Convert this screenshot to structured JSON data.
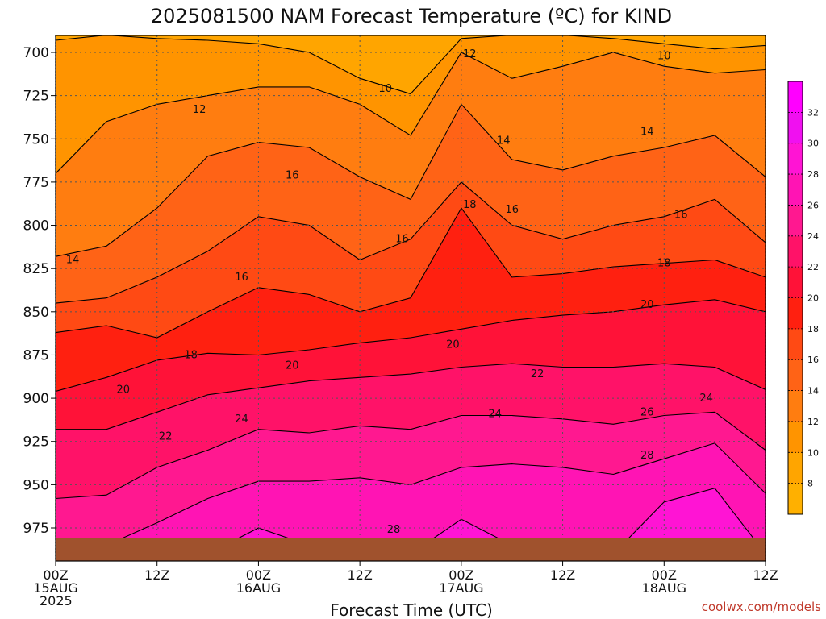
{
  "chart_data": {
    "type": "heatmap",
    "title": "2025081500 NAM Forecast Temperature (ºC) for KIND",
    "xlabel": "Forecast Time (UTC)",
    "ylabel": "",
    "y_ticks": [
      700,
      725,
      750,
      775,
      800,
      825,
      850,
      875,
      900,
      925,
      950,
      975
    ],
    "y_range_hpa": [
      690,
      990
    ],
    "x_range_hours": [
      0,
      84
    ],
    "x_ticks": [
      {
        "hour": 0,
        "line1": "00Z",
        "line2": "15AUG",
        "line3": "2025"
      },
      {
        "hour": 12,
        "line1": "12Z",
        "line2": "",
        "line3": ""
      },
      {
        "hour": 24,
        "line1": "00Z",
        "line2": "16AUG",
        "line3": ""
      },
      {
        "hour": 36,
        "line1": "12Z",
        "line2": "",
        "line3": ""
      },
      {
        "hour": 48,
        "line1": "00Z",
        "line2": "17AUG",
        "line3": ""
      },
      {
        "hour": 60,
        "line1": "12Z",
        "line2": "",
        "line3": ""
      },
      {
        "hour": 72,
        "line1": "00Z",
        "line2": "18AUG",
        "line3": ""
      },
      {
        "hour": 84,
        "line1": "12Z",
        "line2": "",
        "line3": ""
      }
    ],
    "grid": true,
    "colorbar": {
      "position": "right",
      "levels": [
        8,
        10,
        12,
        14,
        16,
        18,
        20,
        22,
        24,
        26,
        28,
        30,
        32
      ],
      "colors": [
        "#ffb000",
        "#ffa500",
        "#ff9400",
        "#ff7d10",
        "#ff6316",
        "#ff4a14",
        "#ff2010",
        "#ff1238",
        "#ff1268",
        "#ff1890",
        "#ff14b4",
        "#ff14d4",
        "#f010f0",
        "#ff00ff"
      ],
      "labels": [
        "8",
        "10",
        "12",
        "14",
        "16",
        "18",
        "20",
        "22",
        "24",
        "26",
        "28",
        "30",
        "32"
      ]
    },
    "contour_levels": [
      10,
      12,
      14,
      16,
      18,
      20,
      22,
      24,
      26,
      28
    ],
    "isotherm_pressure_hpa": {
      "hours": [
        0,
        6,
        12,
        18,
        24,
        30,
        36,
        42,
        48,
        54,
        60,
        66,
        72,
        78,
        84
      ],
      "t10": [
        693,
        690,
        692,
        693,
        695,
        700,
        715,
        724,
        692,
        690,
        690,
        692,
        695,
        698,
        696
      ],
      "t12": [
        770,
        740,
        730,
        725,
        720,
        720,
        730,
        748,
        700,
        715,
        708,
        700,
        708,
        712,
        710
      ],
      "t14": [
        818,
        812,
        790,
        760,
        752,
        755,
        772,
        785,
        730,
        762,
        768,
        760,
        755,
        748,
        772
      ],
      "t16": [
        845,
        842,
        830,
        815,
        795,
        800,
        820,
        808,
        775,
        800,
        808,
        800,
        795,
        785,
        810
      ],
      "t18": [
        862,
        858,
        865,
        850,
        836,
        840,
        850,
        842,
        790,
        830,
        828,
        824,
        822,
        820,
        830
      ],
      "t20": [
        896,
        888,
        878,
        874,
        875,
        872,
        868,
        865,
        860,
        855,
        852,
        850,
        846,
        843,
        850
      ],
      "t22": [
        918,
        918,
        908,
        898,
        894,
        890,
        888,
        886,
        882,
        880,
        882,
        882,
        880,
        882,
        895
      ],
      "t24": [
        958,
        956,
        940,
        930,
        918,
        920,
        916,
        918,
        910,
        910,
        912,
        915,
        910,
        908,
        930
      ],
      "t26": [
        990,
        985,
        972,
        958,
        948,
        948,
        946,
        950,
        940,
        938,
        940,
        944,
        935,
        926,
        955
      ],
      "t28": [
        990,
        990,
        990,
        990,
        975,
        985,
        990,
        990,
        970,
        985,
        990,
        990,
        960,
        952,
        990
      ]
    },
    "contour_labels": [
      {
        "text": "10",
        "hour": 72,
        "hpa": 702
      },
      {
        "text": "12",
        "hour": 49,
        "hpa": 701
      },
      {
        "text": "10",
        "hour": 39,
        "hpa": 721
      },
      {
        "text": "12",
        "hour": 17,
        "hpa": 733
      },
      {
        "text": "14",
        "hour": 53,
        "hpa": 751
      },
      {
        "text": "14",
        "hour": 70,
        "hpa": 746
      },
      {
        "text": "16",
        "hour": 28,
        "hpa": 771
      },
      {
        "text": "18",
        "hour": 49,
        "hpa": 788
      },
      {
        "text": "16",
        "hour": 54,
        "hpa": 791
      },
      {
        "text": "16",
        "hour": 74,
        "hpa": 794
      },
      {
        "text": "16",
        "hour": 41,
        "hpa": 808
      },
      {
        "text": "14",
        "hour": 2,
        "hpa": 820
      },
      {
        "text": "16",
        "hour": 22,
        "hpa": 830
      },
      {
        "text": "18",
        "hour": 72,
        "hpa": 822
      },
      {
        "text": "20",
        "hour": 70,
        "hpa": 846
      },
      {
        "text": "18",
        "hour": 16,
        "hpa": 875
      },
      {
        "text": "20",
        "hour": 28,
        "hpa": 881
      },
      {
        "text": "20",
        "hour": 47,
        "hpa": 869
      },
      {
        "text": "22",
        "hour": 57,
        "hpa": 886
      },
      {
        "text": "20",
        "hour": 8,
        "hpa": 895
      },
      {
        "text": "24",
        "hour": 77,
        "hpa": 900
      },
      {
        "text": "24",
        "hour": 22,
        "hpa": 912
      },
      {
        "text": "24",
        "hour": 52,
        "hpa": 909
      },
      {
        "text": "26",
        "hour": 70,
        "hpa": 908
      },
      {
        "text": "22",
        "hour": 13,
        "hpa": 922
      },
      {
        "text": "28",
        "hour": 70,
        "hpa": 933
      },
      {
        "text": "28",
        "hour": 40,
        "hpa": 976
      }
    ],
    "ground": {
      "top_hpa": 981,
      "color": "#a0522d"
    }
  },
  "credit": "coolwx.com/models"
}
